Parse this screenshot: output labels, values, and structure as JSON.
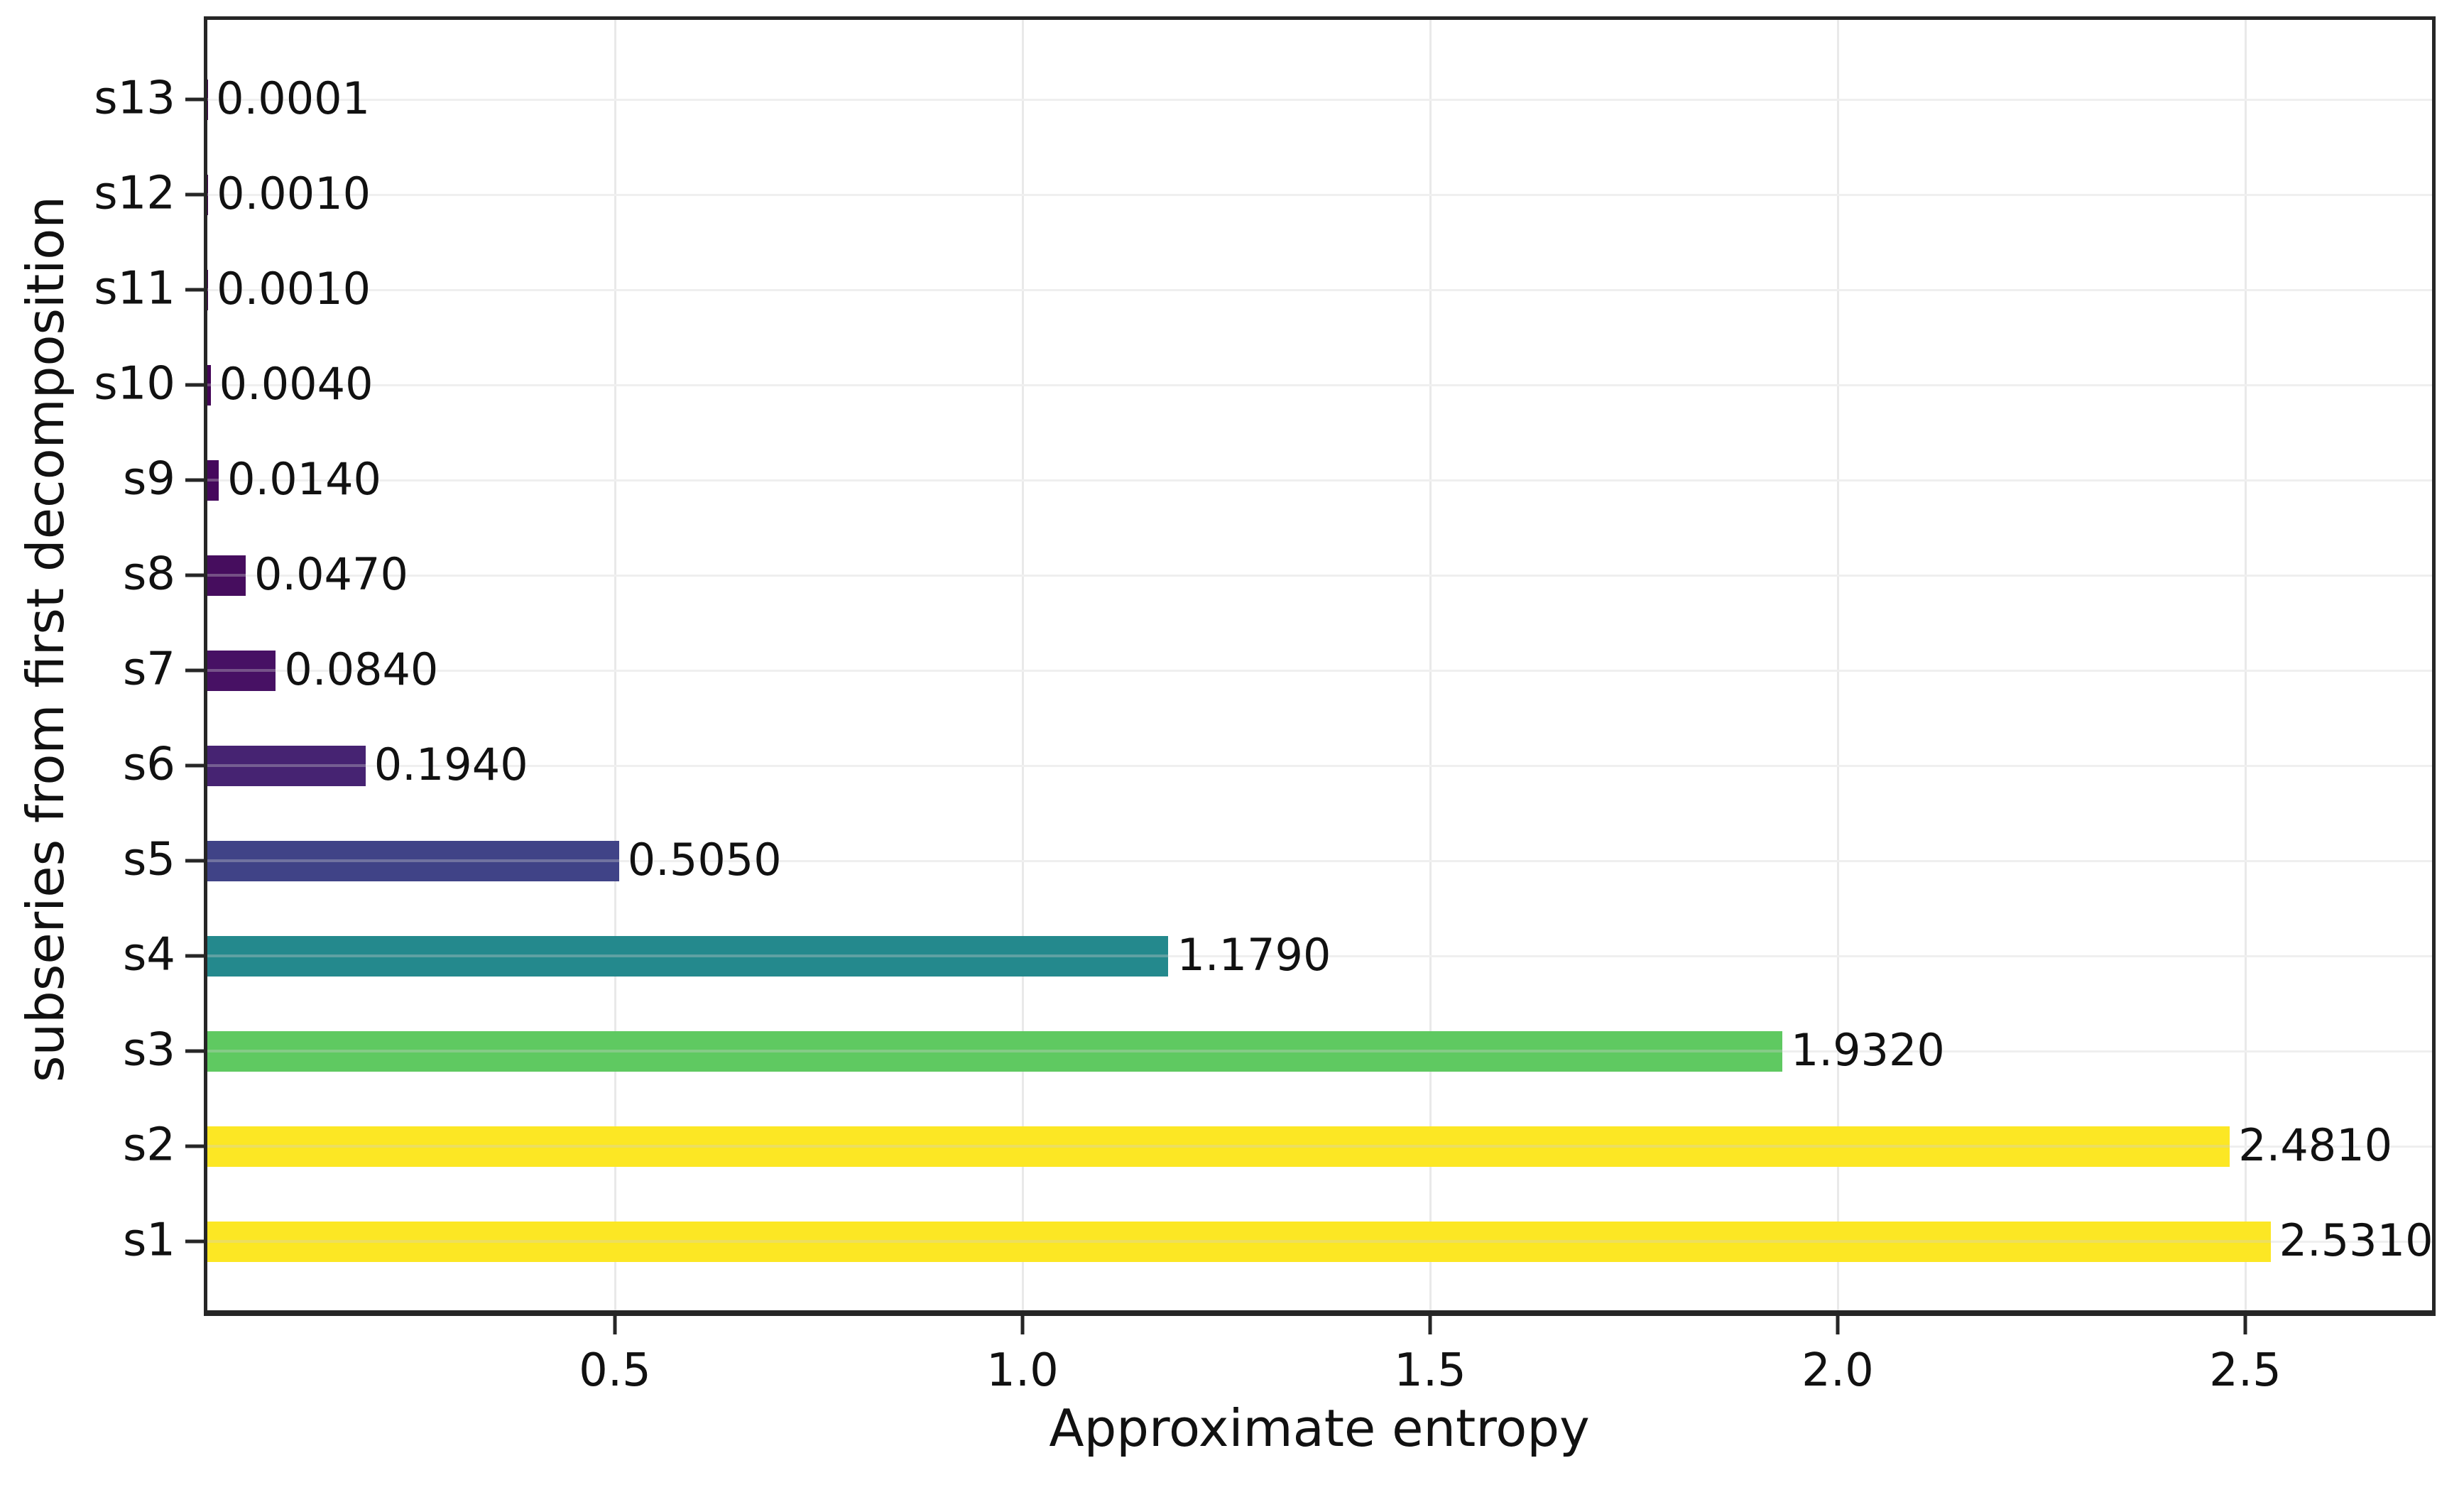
{
  "chart_data": {
    "type": "bar",
    "orientation": "horizontal",
    "title": "",
    "xlabel": "Approximate entropy",
    "ylabel": "subseries from first decomposition",
    "xlim": [
      0,
      2.73
    ],
    "xticks": [
      0.5,
      1.0,
      1.5,
      2.0,
      2.5
    ],
    "xtick_labels": [
      "0.5",
      "1.0",
      "1.5",
      "2.0",
      "2.5"
    ],
    "grid": true,
    "legend": "none",
    "colormap": "viridis",
    "bars": [
      {
        "category": "s13",
        "value": 0.0001,
        "value_label": "0.0001",
        "color": "#440154"
      },
      {
        "category": "s12",
        "value": 0.001,
        "value_label": "0.0010",
        "color": "#440155"
      },
      {
        "category": "s11",
        "value": 0.001,
        "value_label": "0.0010",
        "color": "#440155"
      },
      {
        "category": "s10",
        "value": 0.004,
        "value_label": "0.0040",
        "color": "#440457"
      },
      {
        "category": "s9",
        "value": 0.014,
        "value_label": "0.0140",
        "color": "#45085c"
      },
      {
        "category": "s8",
        "value": 0.047,
        "value_label": "0.0470",
        "color": "#460d5e"
      },
      {
        "category": "s7",
        "value": 0.084,
        "value_label": "0.0840",
        "color": "#471164"
      },
      {
        "category": "s6",
        "value": 0.194,
        "value_label": "0.1940",
        "color": "#462372"
      },
      {
        "category": "s5",
        "value": 0.505,
        "value_label": "0.5050",
        "color": "#404387"
      },
      {
        "category": "s4",
        "value": 1.179,
        "value_label": "1.1790",
        "color": "#24898d"
      },
      {
        "category": "s3",
        "value": 1.932,
        "value_label": "1.9320",
        "color": "#5fc961"
      },
      {
        "category": "s2",
        "value": 2.481,
        "value_label": "2.4810",
        "color": "#fce724"
      },
      {
        "category": "s1",
        "value": 2.531,
        "value_label": "2.5310",
        "color": "#fce724"
      }
    ]
  },
  "style": {
    "background": "#ffffff",
    "axis_color": "#262626",
    "grid_color": "#e9e9e9",
    "text_color": "#111111"
  }
}
